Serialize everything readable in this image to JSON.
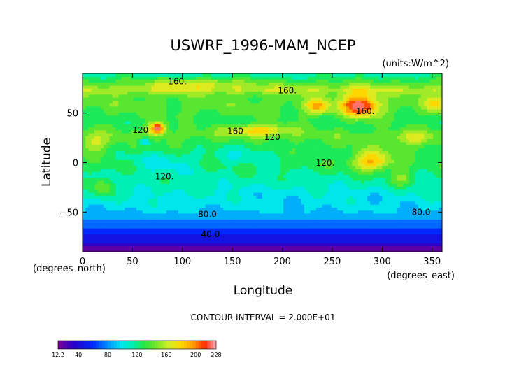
{
  "chart_data": {
    "type": "heatmap",
    "title": "USWRF_1996-MAM_NCEP",
    "units_note": "(units:W/m^2)",
    "xlabel": "Longitude",
    "ylabel": "Latitude",
    "x_unit_note": "(degrees_east)",
    "y_unit_note": "(degrees_north)",
    "xlim": [
      0,
      360
    ],
    "ylim": [
      -90,
      90
    ],
    "x_ticks": [
      0,
      50,
      100,
      150,
      200,
      250,
      300,
      350
    ],
    "y_ticks": [
      -50,
      0,
      50
    ],
    "x_tick_labels": [
      "0",
      "50",
      "100",
      "150",
      "200",
      "250",
      "300",
      "350"
    ],
    "y_tick_labels": [
      "−50",
      "0",
      "50"
    ],
    "contour_interval_text": "CONTOUR INTERVAL = 2.000E+01",
    "contour_labels": [
      {
        "text": "160.",
        "lon": 95,
        "lat": 79
      },
      {
        "text": "160.",
        "lon": 205,
        "lat": 70
      },
      {
        "text": "160.",
        "lon": 283,
        "lat": 49
      },
      {
        "text": "160",
        "lon": 153,
        "lat": 29
      },
      {
        "text": "120",
        "lon": 58,
        "lat": 30
      },
      {
        "text": "120",
        "lon": 190,
        "lat": 23
      },
      {
        "text": "120.",
        "lon": 243,
        "lat": -3
      },
      {
        "text": "120.",
        "lon": 82,
        "lat": -17
      },
      {
        "text": "80.0",
        "lon": 125,
        "lat": -55
      },
      {
        "text": "80.0",
        "lon": 339,
        "lat": -53
      },
      {
        "text": "40.0",
        "lon": 128,
        "lat": -75
      }
    ],
    "colorbar": {
      "min": 12.2,
      "max": 228,
      "tick_labels": [
        "12.2",
        "40",
        "80",
        "120",
        "160",
        "200",
        "228"
      ],
      "tick_values": [
        12.2,
        40,
        80,
        120,
        160,
        200,
        228
      ]
    },
    "zonal_profile": {
      "lat": [
        -90,
        -83,
        -78,
        -72,
        -68,
        -62,
        -56,
        -50,
        -42,
        -35,
        -28,
        -20,
        -12,
        -5,
        0,
        5,
        12,
        20,
        28,
        35,
        42,
        50,
        58,
        66,
        74,
        82,
        86,
        90
      ],
      "value": [
        12.2,
        30,
        45,
        55,
        62,
        70,
        82,
        92,
        100,
        105,
        110,
        115,
        118,
        125,
        128,
        126,
        130,
        135,
        140,
        130,
        128,
        135,
        140,
        138,
        160,
        135,
        125,
        110
      ]
    },
    "hotspots": [
      {
        "lon": 75,
        "lat": 35,
        "peak": 225,
        "w": 8,
        "h": 6
      },
      {
        "lon": 278,
        "lat": 58,
        "peak": 228,
        "w": 18,
        "h": 12
      },
      {
        "lon": 235,
        "lat": 57,
        "peak": 190,
        "w": 12,
        "h": 8
      },
      {
        "lon": 175,
        "lat": 33,
        "peak": 185,
        "w": 32,
        "h": 6
      },
      {
        "lon": 115,
        "lat": 80,
        "peak": 172,
        "w": 40,
        "h": 5
      },
      {
        "lon": 290,
        "lat": 2,
        "peak": 190,
        "w": 20,
        "h": 10
      },
      {
        "lon": 12,
        "lat": 20,
        "peak": 165,
        "w": 14,
        "h": 10
      },
      {
        "lon": 330,
        "lat": 25,
        "peak": 168,
        "w": 18,
        "h": 8
      },
      {
        "lon": 355,
        "lat": 60,
        "peak": 172,
        "w": 14,
        "h": 8
      },
      {
        "lon": 80,
        "lat": 0,
        "peak": 105,
        "w": 35,
        "h": 12
      },
      {
        "lon": 160,
        "lat": 10,
        "peak": 112,
        "w": 40,
        "h": 14
      },
      {
        "lon": 200,
        "lat": -30,
        "peak": 100,
        "w": 60,
        "h": 12
      },
      {
        "lon": 300,
        "lat": -35,
        "peak": 98,
        "w": 25,
        "h": 10
      },
      {
        "lon": 62,
        "lat": 21,
        "peak": 85,
        "w": 6,
        "h": 4
      },
      {
        "lon": 320,
        "lat": -15,
        "peak": 150,
        "w": 12,
        "h": 8
      },
      {
        "lon": 20,
        "lat": -25,
        "peak": 148,
        "w": 10,
        "h": 10
      }
    ]
  }
}
